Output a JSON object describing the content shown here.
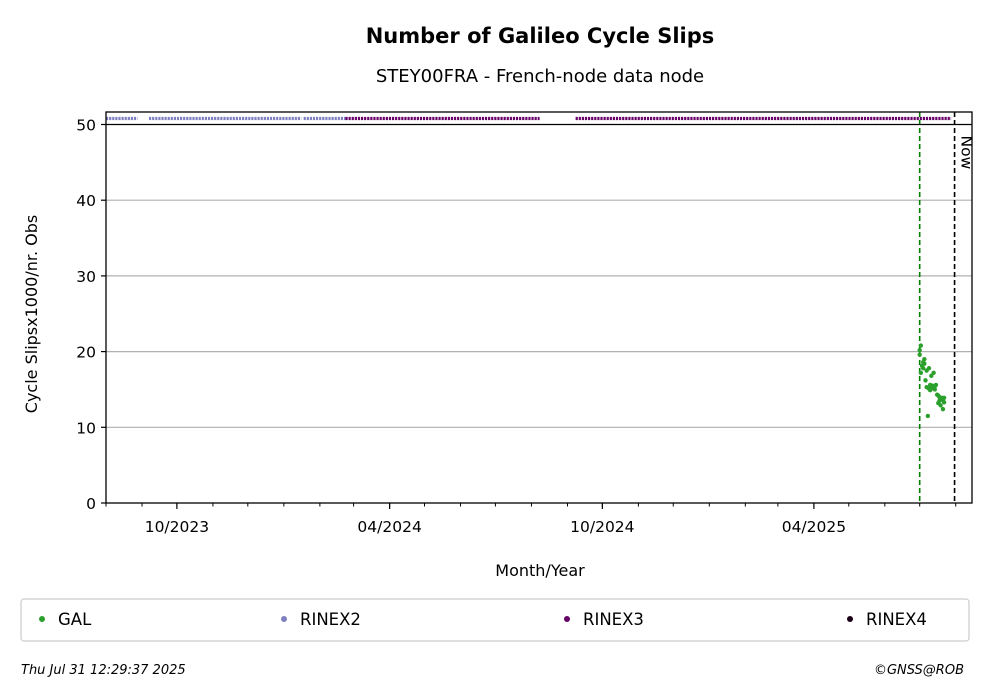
{
  "chart_data": {
    "type": "scatter",
    "title": "Number of Galileo Cycle Slips",
    "subtitle": "STEY00FRA - French-node data node",
    "xlabel": "Month/Year",
    "ylabel": "Cycle Slipsx1000/nr. Obs",
    "x_range": [
      "2023-08-01",
      "2025-08-15"
    ],
    "ylim": [
      0,
      50
    ],
    "y_ticks": [
      0,
      10,
      20,
      30,
      40,
      50
    ],
    "x_ticks": [
      {
        "date": "2023-10-01",
        "label": "10/2023"
      },
      {
        "date": "2024-04-01",
        "label": "04/2024"
      },
      {
        "date": "2024-10-01",
        "label": "10/2024"
      },
      {
        "date": "2025-04-01",
        "label": "04/2025"
      }
    ],
    "grid": "horizontal",
    "now_label": "Now",
    "now_date": "2025-07-31",
    "green_marker_date": "2025-07-01",
    "availability": [
      {
        "series": "RINEX2",
        "color": "#8080c0",
        "ranges": [
          [
            "2023-08-01",
            "2023-08-28"
          ],
          [
            "2023-09-07",
            "2024-01-16"
          ],
          [
            "2024-01-18",
            "2024-02-23"
          ]
        ]
      },
      {
        "series": "RINEX3",
        "color": "#660066",
        "ranges": [
          [
            "2024-02-23",
            "2024-08-08"
          ],
          [
            "2024-09-08",
            "2025-07-28"
          ]
        ]
      }
    ],
    "series": [
      {
        "name": "GAL",
        "color": "#2ca02c",
        "points": [
          [
            "2025-07-01",
            19.6
          ],
          [
            "2025-07-01",
            20.2
          ],
          [
            "2025-07-02",
            20.8
          ],
          [
            "2025-07-02",
            17.2
          ],
          [
            "2025-07-03",
            18.1
          ],
          [
            "2025-07-04",
            17.8
          ],
          [
            "2025-07-04",
            18.6
          ],
          [
            "2025-07-05",
            18.4
          ],
          [
            "2025-07-05",
            19.0
          ],
          [
            "2025-07-06",
            16.2
          ],
          [
            "2025-07-07",
            17.5
          ],
          [
            "2025-07-07",
            15.3
          ],
          [
            "2025-07-08",
            11.5
          ],
          [
            "2025-07-09",
            17.8
          ],
          [
            "2025-07-09",
            15.1
          ],
          [
            "2025-07-10",
            15.6
          ],
          [
            "2025-07-10",
            14.9
          ],
          [
            "2025-07-11",
            16.8
          ],
          [
            "2025-07-12",
            15.2
          ],
          [
            "2025-07-12",
            15.5
          ],
          [
            "2025-07-13",
            17.2
          ],
          [
            "2025-07-14",
            15.4
          ],
          [
            "2025-07-14",
            15.0
          ],
          [
            "2025-07-15",
            15.6
          ],
          [
            "2025-07-16",
            14.3
          ],
          [
            "2025-07-17",
            13.2
          ],
          [
            "2025-07-17",
            14.2
          ],
          [
            "2025-07-18",
            13.5
          ],
          [
            "2025-07-18",
            14.0
          ],
          [
            "2025-07-19",
            12.9
          ],
          [
            "2025-07-19",
            13.8
          ],
          [
            "2025-07-20",
            13.9
          ],
          [
            "2025-07-21",
            12.4
          ],
          [
            "2025-07-21",
            13.6
          ],
          [
            "2025-07-22",
            13.9
          ],
          [
            "2025-07-22",
            13.3
          ]
        ]
      }
    ],
    "legend": [
      {
        "label": "GAL",
        "color": "#2ca02c"
      },
      {
        "label": "RINEX2",
        "color": "#8080c0"
      },
      {
        "label": "RINEX3",
        "color": "#660066"
      },
      {
        "label": "RINEX4",
        "color": "#1a0018"
      }
    ]
  },
  "footer": {
    "timestamp": "Thu Jul 31 12:29:37 2025",
    "credit": "©GNSS@ROB"
  }
}
